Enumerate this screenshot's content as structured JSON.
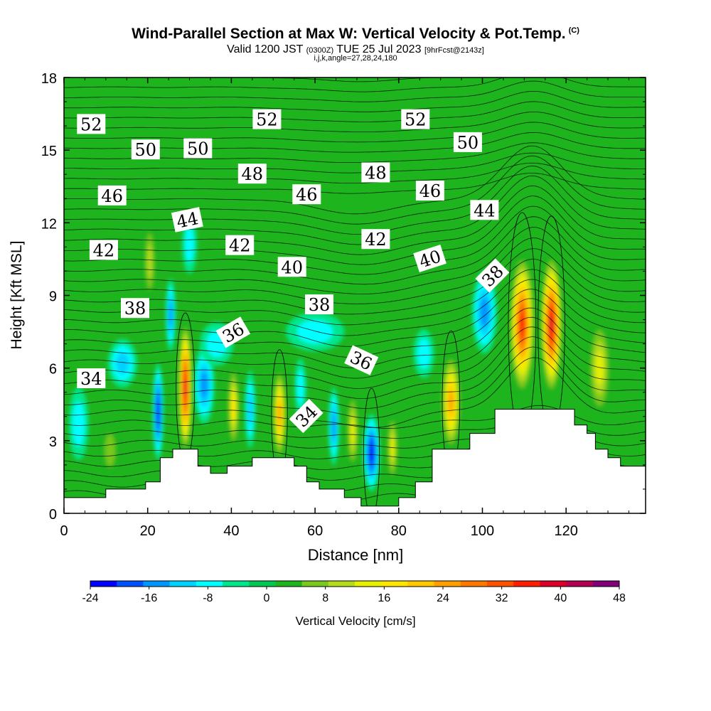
{
  "header": {
    "title": "Wind-Parallel Section at Max W: Vertical Velocity & Pot.Temp.",
    "copyright": "(C)",
    "valid_prefix": "Valid 1200 JST",
    "valid_utc": "(0300Z)",
    "valid_date": "TUE 25 Jul 2023",
    "forecast": "[9hrFcst@2143z]",
    "indices": "i,j,k,angle=27,28,24,180"
  },
  "chart_data": {
    "type": "heatmap",
    "title": "Wind-Parallel Section at Max W: Vertical Velocity & Pot.Temp.",
    "xlabel": "Distance [nm]",
    "ylabel": "Height [Kft MSL]",
    "xlim": [
      0,
      139
    ],
    "ylim": [
      0,
      18
    ],
    "x_ticks": [
      "0",
      "20",
      "40",
      "60",
      "80",
      "100",
      "120"
    ],
    "y_ticks": [
      "0",
      "3",
      "6",
      "9",
      "12",
      "15",
      "18"
    ],
    "colorbar": {
      "label": "Vertical Velocity [cm/s]",
      "range": [
        -24,
        48
      ],
      "ticks": [
        "-24",
        "-16",
        "-8",
        "0",
        "8",
        "16",
        "24",
        "32",
        "40",
        "48"
      ],
      "colors": [
        "#0000ff",
        "#0050ff",
        "#0096ff",
        "#00d2ff",
        "#00ffff",
        "#00e68c",
        "#00c850",
        "#1eb41e",
        "#78c81e",
        "#b4dc1e",
        "#e6f000",
        "#ffe600",
        "#ffc800",
        "#ffa000",
        "#ff7800",
        "#ff5000",
        "#ff1e00",
        "#dc0028",
        "#b40050",
        "#820078"
      ]
    },
    "terrain": [
      {
        "x": 0,
        "y": 0.65
      },
      {
        "x": 10,
        "y": 0.65
      },
      {
        "x": 10,
        "y": 1.0
      },
      {
        "x": 19.5,
        "y": 1.0
      },
      {
        "x": 19.5,
        "y": 1.3
      },
      {
        "x": 23,
        "y": 1.3
      },
      {
        "x": 23,
        "y": 2.3
      },
      {
        "x": 26,
        "y": 2.3
      },
      {
        "x": 26,
        "y": 2.65
      },
      {
        "x": 32,
        "y": 2.65
      },
      {
        "x": 32,
        "y": 1.95
      },
      {
        "x": 35,
        "y": 1.95
      },
      {
        "x": 35,
        "y": 1.65
      },
      {
        "x": 39,
        "y": 1.65
      },
      {
        "x": 39,
        "y": 1.95
      },
      {
        "x": 45,
        "y": 1.95
      },
      {
        "x": 45,
        "y": 2.3
      },
      {
        "x": 55,
        "y": 2.3
      },
      {
        "x": 55,
        "y": 1.95
      },
      {
        "x": 58,
        "y": 1.95
      },
      {
        "x": 58,
        "y": 1.3
      },
      {
        "x": 61,
        "y": 1.3
      },
      {
        "x": 61,
        "y": 1.0
      },
      {
        "x": 67,
        "y": 1.0
      },
      {
        "x": 67,
        "y": 0.65
      },
      {
        "x": 71,
        "y": 0.65
      },
      {
        "x": 71,
        "y": 0.3
      },
      {
        "x": 80,
        "y": 0.3
      },
      {
        "x": 80,
        "y": 0.65
      },
      {
        "x": 84,
        "y": 0.65
      },
      {
        "x": 84,
        "y": 1.3
      },
      {
        "x": 88,
        "y": 1.3
      },
      {
        "x": 88,
        "y": 2.65
      },
      {
        "x": 97,
        "y": 2.65
      },
      {
        "x": 97,
        "y": 3.3
      },
      {
        "x": 103,
        "y": 3.3
      },
      {
        "x": 103,
        "y": 4.3
      },
      {
        "x": 122,
        "y": 4.3
      },
      {
        "x": 122,
        "y": 3.65
      },
      {
        "x": 125,
        "y": 3.65
      },
      {
        "x": 125,
        "y": 3.3
      },
      {
        "x": 127,
        "y": 3.3
      },
      {
        "x": 127,
        "y": 2.65
      },
      {
        "x": 130,
        "y": 2.65
      },
      {
        "x": 130,
        "y": 2.3
      },
      {
        "x": 133,
        "y": 2.3
      },
      {
        "x": 133,
        "y": 1.95
      },
      {
        "x": 139,
        "y": 1.95
      }
    ],
    "vertical_velocity_cells": [
      {
        "x": 22.5,
        "y": 4.2,
        "rx": 1.3,
        "ry": 2.0,
        "w": -22
      },
      {
        "x": 25.5,
        "y": 8.2,
        "rx": 1.2,
        "ry": 1.5,
        "w": -16
      },
      {
        "x": 29,
        "y": 5.2,
        "rx": 1.7,
        "ry": 2.7,
        "w": 40
      },
      {
        "x": 33.5,
        "y": 5.3,
        "rx": 2.5,
        "ry": 1.6,
        "w": -15
      },
      {
        "x": 40.5,
        "y": 4.4,
        "rx": 1.4,
        "ry": 1.7,
        "w": 16
      },
      {
        "x": 44.5,
        "y": 4.3,
        "rx": 1.3,
        "ry": 1.6,
        "w": -10
      },
      {
        "x": 51.5,
        "y": 4.1,
        "rx": 1.6,
        "ry": 1.9,
        "w": 24
      },
      {
        "x": 64.5,
        "y": 3.6,
        "rx": 1.3,
        "ry": 1.6,
        "w": -14
      },
      {
        "x": 69,
        "y": 3.4,
        "rx": 1.4,
        "ry": 1.6,
        "w": 15
      },
      {
        "x": 73.5,
        "y": 2.5,
        "rx": 2.0,
        "ry": 1.6,
        "w": -22
      },
      {
        "x": 78.5,
        "y": 2.7,
        "rx": 1.3,
        "ry": 1.4,
        "w": 14
      },
      {
        "x": 92.5,
        "y": 4.6,
        "rx": 2.3,
        "ry": 2.0,
        "w": 26
      },
      {
        "x": 100.5,
        "y": 8.3,
        "rx": 3.0,
        "ry": 1.7,
        "w": -14
      },
      {
        "x": 109.5,
        "y": 7.8,
        "rx": 3.0,
        "ry": 2.9,
        "w": 36
      },
      {
        "x": 116.5,
        "y": 7.8,
        "rx": 2.6,
        "ry": 2.9,
        "w": 38
      },
      {
        "x": 128,
        "y": 6.0,
        "rx": 2.6,
        "ry": 2.0,
        "w": 12
      },
      {
        "x": 20.5,
        "y": 10.4,
        "rx": 1.4,
        "ry": 1.6,
        "w": 10
      },
      {
        "x": 30,
        "y": 11.1,
        "rx": 1.8,
        "ry": 1.2,
        "w": -8
      },
      {
        "x": 14,
        "y": 6.2,
        "rx": 3.5,
        "ry": 1.0,
        "w": -10
      },
      {
        "x": 3.5,
        "y": 3.7,
        "rx": 2.4,
        "ry": 1.5,
        "w": -7
      },
      {
        "x": 11,
        "y": 2.6,
        "rx": 2.0,
        "ry": 1.1,
        "w": 6
      },
      {
        "x": 56.5,
        "y": 5.2,
        "rx": 1.4,
        "ry": 1.2,
        "w": -9
      },
      {
        "x": 36.5,
        "y": 7.0,
        "rx": 4.0,
        "ry": 0.9,
        "w": -9
      },
      {
        "x": 60,
        "y": 7.5,
        "rx": 7.0,
        "ry": 0.8,
        "w": -8
      },
      {
        "x": 86,
        "y": 6.6,
        "rx": 2.5,
        "ry": 1.0,
        "w": -9
      }
    ],
    "potential_temperature_labels": [
      {
        "text": "52",
        "x": 6.5,
        "y": 16.05,
        "angle": 0
      },
      {
        "text": "52",
        "x": 48.5,
        "y": 16.25,
        "angle": 0
      },
      {
        "text": "52",
        "x": 84,
        "y": 16.25,
        "angle": 0
      },
      {
        "text": "50",
        "x": 19.5,
        "y": 15.0,
        "angle": 0
      },
      {
        "text": "50",
        "x": 32,
        "y": 15.05,
        "angle": 0
      },
      {
        "text": "50",
        "x": 96.5,
        "y": 15.3,
        "angle": 0
      },
      {
        "text": "48",
        "x": 45,
        "y": 14.0,
        "angle": 0
      },
      {
        "text": "48",
        "x": 74.5,
        "y": 14.05,
        "angle": 0
      },
      {
        "text": "46",
        "x": 11.5,
        "y": 13.1,
        "angle": 0
      },
      {
        "text": "46",
        "x": 58,
        "y": 13.15,
        "angle": 0
      },
      {
        "text": "46",
        "x": 87.5,
        "y": 13.3,
        "angle": 0
      },
      {
        "text": "44",
        "x": 29.5,
        "y": 12.1,
        "angle": -12
      },
      {
        "text": "44",
        "x": 100.5,
        "y": 12.5,
        "angle": 0
      },
      {
        "text": "42",
        "x": 9.5,
        "y": 10.85,
        "angle": 0
      },
      {
        "text": "42",
        "x": 42,
        "y": 11.05,
        "angle": 0
      },
      {
        "text": "42",
        "x": 74.5,
        "y": 11.3,
        "angle": 0
      },
      {
        "text": "40",
        "x": 54.5,
        "y": 10.15,
        "angle": 0
      },
      {
        "text": "40",
        "x": 87.5,
        "y": 10.5,
        "angle": -18
      },
      {
        "text": "38",
        "x": 17,
        "y": 8.45,
        "angle": 0
      },
      {
        "text": "38",
        "x": 61,
        "y": 8.6,
        "angle": 0
      },
      {
        "text": "38",
        "x": 102.5,
        "y": 9.8,
        "angle": -45
      },
      {
        "text": "36",
        "x": 40.5,
        "y": 7.45,
        "angle": -30
      },
      {
        "text": "36",
        "x": 71,
        "y": 6.3,
        "angle": 25
      },
      {
        "text": "34",
        "x": 6.5,
        "y": 5.55,
        "angle": 0
      },
      {
        "text": "34",
        "x": 58,
        "y": 4.0,
        "angle": -45
      }
    ]
  }
}
